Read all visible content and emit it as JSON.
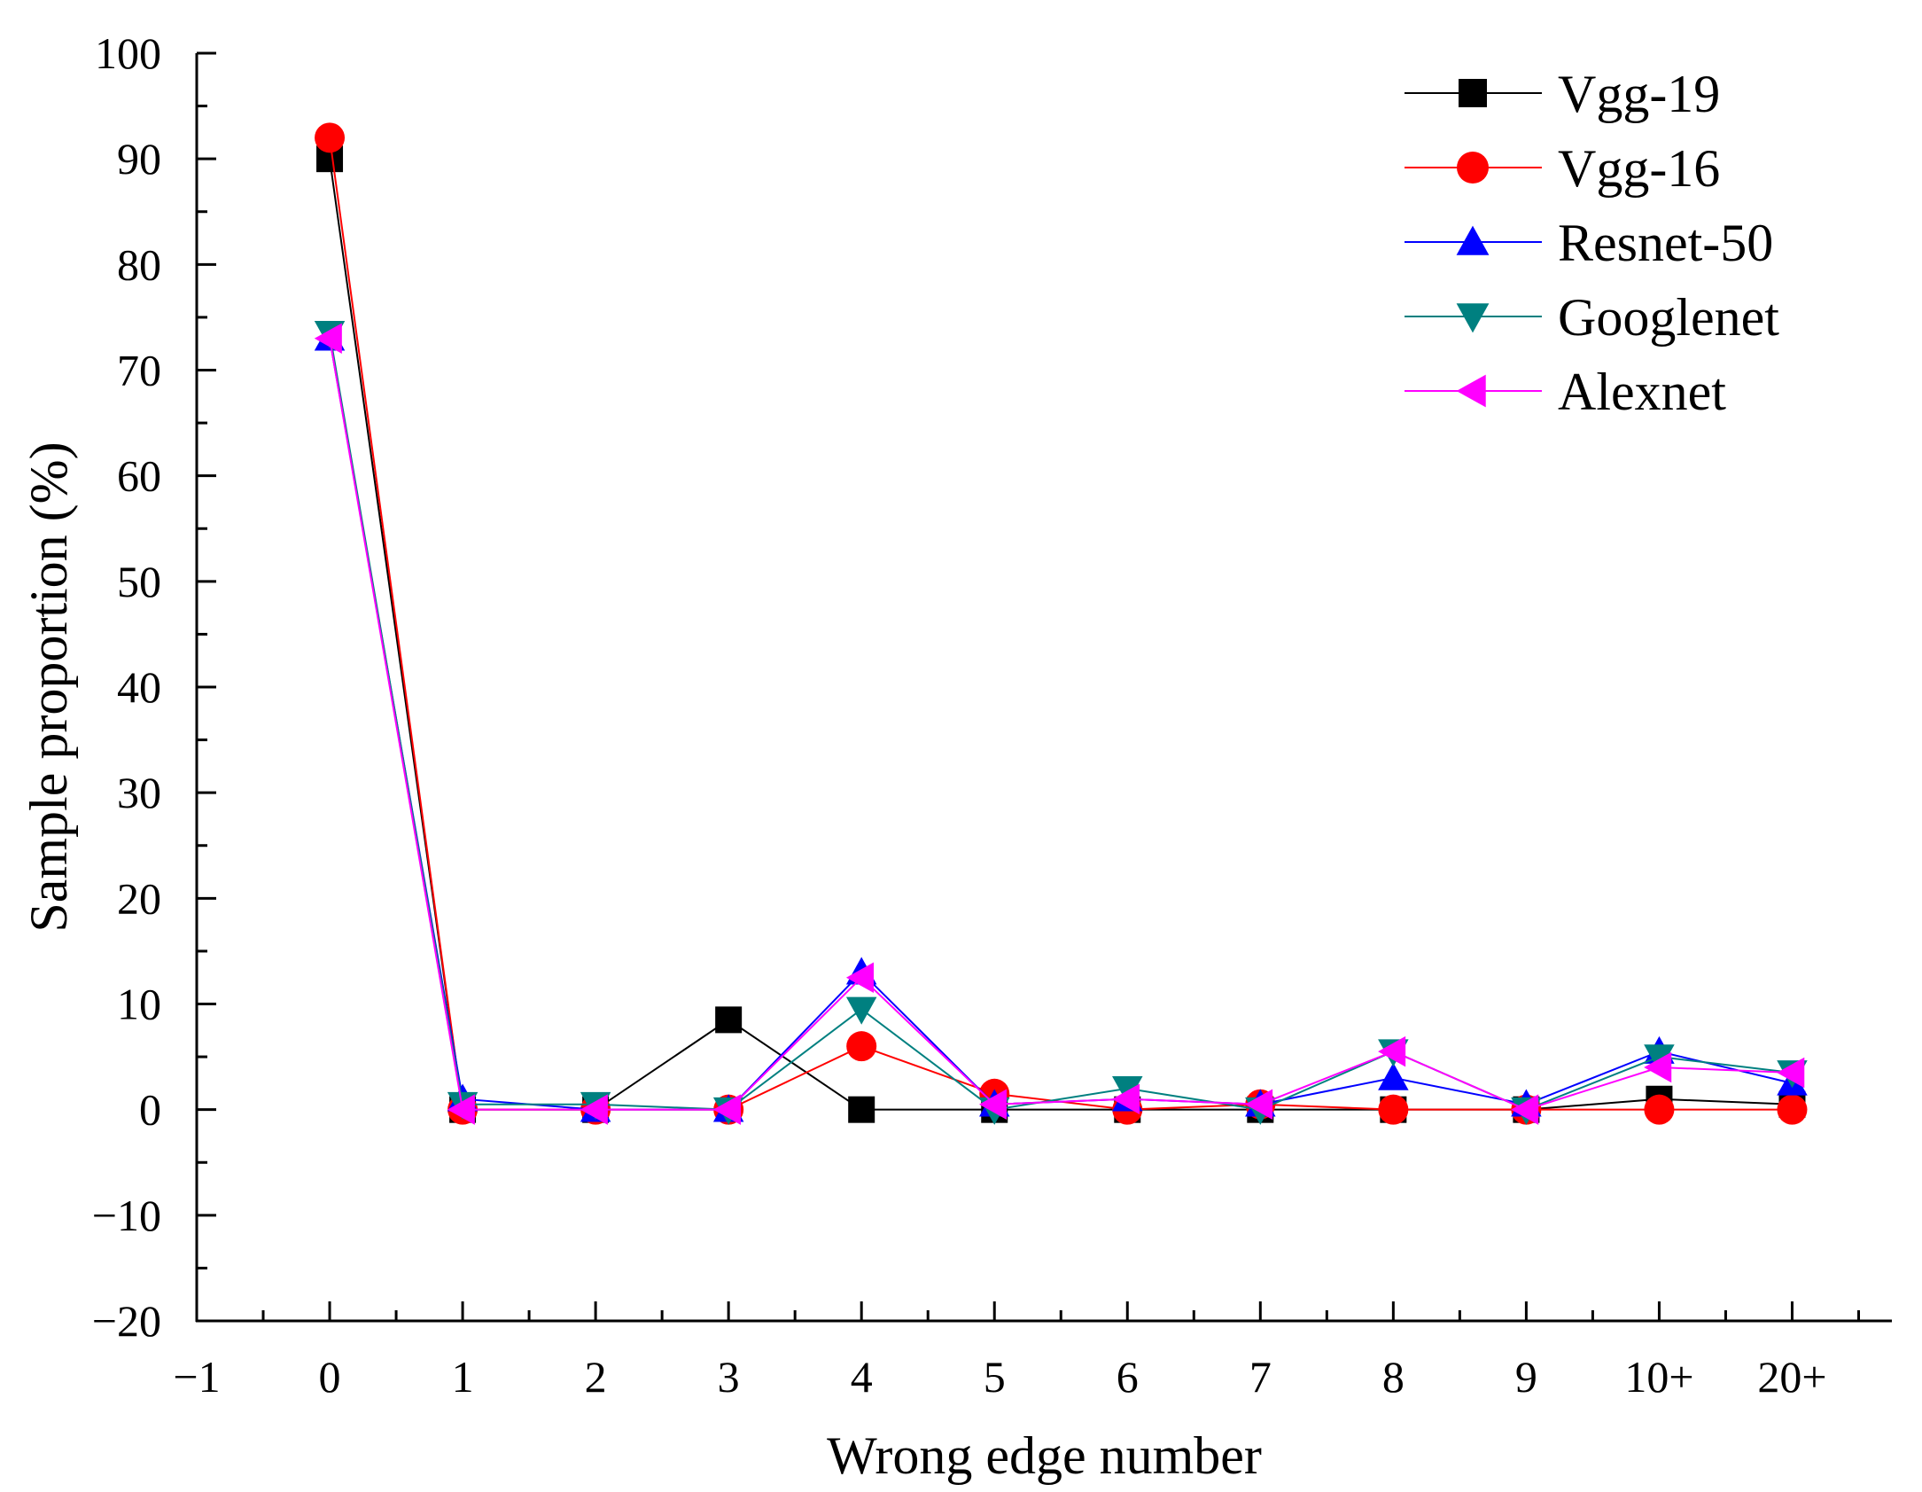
{
  "chart_data": {
    "type": "line",
    "title": "",
    "xlabel": "Wrong edge number",
    "ylabel": "Sample proportion (%)",
    "xlim": [
      -1,
      11
    ],
    "ylim": [
      -20,
      100
    ],
    "x_ticks": [
      {
        "v": -1,
        "label": "−1"
      },
      {
        "v": 0,
        "label": "0"
      },
      {
        "v": 1,
        "label": "1"
      },
      {
        "v": 2,
        "label": "2"
      },
      {
        "v": 3,
        "label": "3"
      },
      {
        "v": 4,
        "label": "4"
      },
      {
        "v": 5,
        "label": "5"
      },
      {
        "v": 6,
        "label": "6"
      },
      {
        "v": 7,
        "label": "7"
      },
      {
        "v": 8,
        "label": "8"
      },
      {
        "v": 9,
        "label": "9"
      },
      {
        "v": 10,
        "label": "10+"
      },
      {
        "v": 11,
        "label": "20+"
      }
    ],
    "y_ticks": [
      {
        "v": -20,
        "label": "−20"
      },
      {
        "v": -10,
        "label": "−10"
      },
      {
        "v": 0,
        "label": "0"
      },
      {
        "v": 10,
        "label": "10"
      },
      {
        "v": 20,
        "label": "20"
      },
      {
        "v": 30,
        "label": "30"
      },
      {
        "v": 40,
        "label": "40"
      },
      {
        "v": 50,
        "label": "50"
      },
      {
        "v": 60,
        "label": "60"
      },
      {
        "v": 70,
        "label": "70"
      },
      {
        "v": 80,
        "label": "80"
      },
      {
        "v": 90,
        "label": "90"
      },
      {
        "v": 100,
        "label": "100"
      }
    ],
    "categories": [
      "0",
      "1",
      "2",
      "3",
      "4",
      "5",
      "6",
      "7",
      "8",
      "9",
      "10+",
      "20+"
    ],
    "x": [
      0,
      1,
      2,
      3,
      4,
      5,
      6,
      7,
      8,
      9,
      10,
      11
    ],
    "series": [
      {
        "name": "Vgg-19",
        "color": "#000000",
        "marker": "square",
        "values": [
          90,
          0,
          0,
          8.5,
          0,
          0,
          0,
          0,
          0,
          0,
          1,
          0.5
        ]
      },
      {
        "name": "Vgg-16",
        "color": "#ff0000",
        "marker": "circle",
        "values": [
          92,
          0,
          0,
          0,
          6,
          1.5,
          0,
          0.5,
          0,
          0,
          0,
          0
        ]
      },
      {
        "name": "Resnet-50",
        "color": "#0000ff",
        "marker": "triangle-up",
        "values": [
          73,
          1,
          0,
          0,
          13,
          0.5,
          1,
          0.5,
          3,
          0.5,
          5.5,
          2.5
        ]
      },
      {
        "name": "Googlenet",
        "color": "#008080",
        "marker": "triangle-down",
        "values": [
          73.5,
          0.5,
          0.5,
          0,
          9.5,
          0,
          2,
          0,
          5.5,
          0,
          5,
          3.5
        ]
      },
      {
        "name": "Alexnet",
        "color": "#ff00ff",
        "marker": "triangle-left",
        "values": [
          73,
          0,
          0,
          0,
          12.5,
          0.5,
          1,
          0.5,
          5.5,
          0,
          4,
          3.5
        ]
      }
    ],
    "legend_position": "top-right",
    "grid": false
  }
}
